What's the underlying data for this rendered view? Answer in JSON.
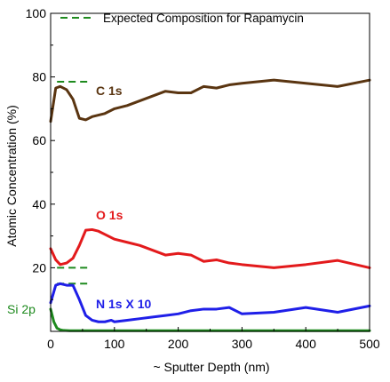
{
  "chart_data": {
    "type": "line",
    "title": "",
    "xlabel": "~ Sputter Depth (nm)",
    "ylabel": "Atomic Concentration (%)",
    "xlim": [
      0,
      500
    ],
    "ylim": [
      0,
      100
    ],
    "xticks": [
      0,
      100,
      200,
      300,
      400,
      500
    ],
    "yticks": [
      20,
      40,
      60,
      80,
      100
    ],
    "grid": false,
    "legend": {
      "position": "top",
      "label": "Expected Composition for Rapamycin",
      "line_color": "#1e8a1e",
      "line_style": "dashed"
    },
    "expected_levels": [
      {
        "y": 78.5,
        "x_range": [
          10,
          60
        ]
      },
      {
        "y": 20.0,
        "x_range": [
          10,
          60
        ]
      },
      {
        "y": 15.0,
        "x_range": [
          10,
          60
        ]
      }
    ],
    "series": [
      {
        "name": "C 1s",
        "color": "#5a3511",
        "x": [
          0,
          8,
          15,
          25,
          35,
          45,
          55,
          65,
          75,
          85,
          100,
          120,
          140,
          160,
          180,
          200,
          220,
          240,
          260,
          280,
          300,
          350,
          400,
          450,
          500
        ],
        "y": [
          66,
          76.5,
          77,
          76,
          73,
          67,
          66.5,
          67.5,
          68,
          68.5,
          70,
          71,
          72.5,
          74,
          75.5,
          75,
          75,
          77,
          76.5,
          77.5,
          78,
          79,
          78,
          77,
          79
        ]
      },
      {
        "name": "O 1s",
        "color": "#e31a1c",
        "x": [
          0,
          8,
          15,
          25,
          35,
          45,
          55,
          65,
          75,
          85,
          100,
          120,
          140,
          160,
          180,
          200,
          220,
          240,
          260,
          280,
          300,
          350,
          400,
          450,
          500
        ],
        "y": [
          26,
          22.5,
          21,
          21.5,
          23,
          27,
          31.8,
          32,
          31.5,
          30.5,
          29,
          28,
          27,
          25.5,
          24,
          24.5,
          24,
          22,
          22.5,
          21.5,
          21,
          20,
          21,
          22.3,
          20
        ]
      },
      {
        "name": "N 1s X 10",
        "color": "#1f1fe8",
        "x": [
          0,
          8,
          15,
          25,
          35,
          45,
          55,
          65,
          75,
          85,
          95,
          100,
          120,
          140,
          160,
          180,
          200,
          220,
          240,
          260,
          280,
          300,
          350,
          400,
          450,
          500
        ],
        "y": [
          9,
          14.5,
          15,
          14.5,
          14.5,
          10,
          5,
          3.5,
          3,
          3,
          3.5,
          3,
          3.5,
          4,
          4.5,
          5,
          5.5,
          6.5,
          7,
          7,
          7.5,
          5.5,
          6,
          7.5,
          6,
          8
        ]
      },
      {
        "name": "Si 2p",
        "color": "#1e8a1e",
        "x": [
          0,
          5,
          10,
          15,
          20,
          30,
          50,
          100,
          200,
          300,
          400,
          500
        ],
        "y": [
          7,
          3,
          1,
          0.5,
          0.3,
          0.2,
          0.2,
          0.2,
          0.2,
          0.2,
          0.2,
          0.2
        ]
      }
    ]
  }
}
